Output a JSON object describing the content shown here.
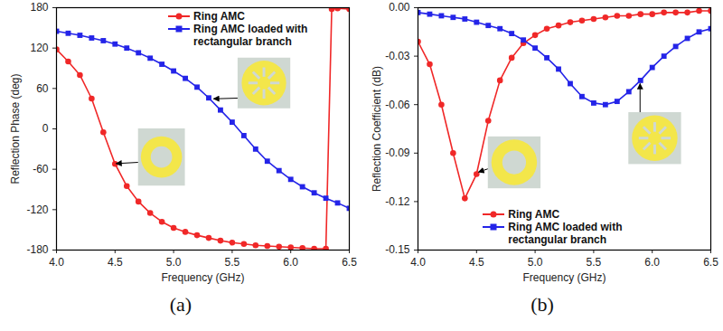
{
  "chart_data": [
    {
      "type": "line",
      "caption": "(a)",
      "x_label": "Frequency (GHz)",
      "y_label": "Reflection Phase (deg)",
      "xlim": [
        4.0,
        6.5
      ],
      "xticks": [
        {
          "value": 4.0,
          "label": "4.0"
        },
        {
          "value": 4.5,
          "label": "4.5"
        },
        {
          "value": 5.0,
          "label": "5.0"
        },
        {
          "value": 5.5,
          "label": "5.5"
        },
        {
          "value": 6.0,
          "label": "6.0"
        },
        {
          "value": 6.5,
          "label": "6.5"
        }
      ],
      "ylim": [
        -180,
        180
      ],
      "yticks": [
        -180,
        -120,
        -60,
        0,
        60,
        120,
        180
      ],
      "grid": false,
      "legend": "upper right",
      "series": [
        {
          "name": "Ring AMC",
          "color": "#f02828",
          "marker": "circle",
          "line_style": "solid",
          "x": [
            4.0,
            4.1,
            4.2,
            4.3,
            4.4,
            4.5,
            4.6,
            4.7,
            4.8,
            4.9,
            5.0,
            5.1,
            5.2,
            5.3,
            5.4,
            5.5,
            5.6,
            5.7,
            5.8,
            5.9,
            6.0,
            6.1,
            6.2,
            6.3,
            6.35,
            6.4,
            6.5
          ],
          "values": [
            118,
            100,
            80,
            45,
            -5,
            -52,
            -85,
            -108,
            -125,
            -138,
            -147,
            -153,
            -158,
            -162,
            -166,
            -169,
            -171,
            -173,
            -174,
            -175,
            -176,
            -177,
            -178,
            -178,
            178,
            179,
            178
          ]
        },
        {
          "name": "Ring AMC loaded with rectangular branch",
          "color": "#2424e8",
          "marker": "square",
          "line_style": "solid",
          "x": [
            4.0,
            4.1,
            4.2,
            4.3,
            4.4,
            4.5,
            4.6,
            4.7,
            4.8,
            4.9,
            5.0,
            5.1,
            5.2,
            5.3,
            5.4,
            5.5,
            5.6,
            5.7,
            5.8,
            5.9,
            6.0,
            6.1,
            6.2,
            6.3,
            6.4,
            6.5
          ],
          "values": [
            145,
            142,
            139,
            135,
            131,
            126,
            120,
            113,
            105,
            96,
            86,
            75,
            62,
            46,
            28,
            10,
            -10,
            -30,
            -48,
            -62,
            -75,
            -86,
            -95,
            -103,
            -110,
            -118
          ]
        }
      ]
    },
    {
      "type": "line",
      "caption": "(b)",
      "x_label": "Frequency (GHz)",
      "y_label": "Reflection Coefficient (dB)",
      "xlim": [
        4.0,
        6.5
      ],
      "xticks": [
        {
          "value": 4.0,
          "label": "4.0"
        },
        {
          "value": 4.5,
          "label": "4.5"
        },
        {
          "value": 5.0,
          "label": "5.0"
        },
        {
          "value": 5.5,
          "label": "5.5"
        },
        {
          "value": 6.0,
          "label": "6.0"
        },
        {
          "value": 6.5,
          "label": "6.5"
        }
      ],
      "ylim": [
        -0.15,
        0.0
      ],
      "yticks": [
        -0.15,
        -0.12,
        -0.09,
        -0.06,
        -0.03,
        {
          "value": 0.0,
          "label": "0.00"
        }
      ],
      "grid": false,
      "legend": "lower center",
      "series": [
        {
          "name": "Ring AMC",
          "color": "#f02828",
          "marker": "circle",
          "line_style": "solid",
          "x": [
            4.0,
            4.1,
            4.2,
            4.3,
            4.4,
            4.5,
            4.6,
            4.7,
            4.8,
            4.9,
            5.0,
            5.1,
            5.2,
            5.3,
            5.4,
            5.5,
            5.6,
            5.7,
            5.8,
            5.9,
            6.0,
            6.1,
            6.2,
            6.3,
            6.4,
            6.5
          ],
          "values": [
            -0.021,
            -0.035,
            -0.06,
            -0.09,
            -0.118,
            -0.103,
            -0.07,
            -0.045,
            -0.031,
            -0.022,
            -0.017,
            -0.013,
            -0.011,
            -0.009,
            -0.008,
            -0.007,
            -0.006,
            -0.005,
            -0.005,
            -0.004,
            -0.004,
            -0.003,
            -0.003,
            -0.003,
            -0.002,
            -0.002
          ]
        },
        {
          "name": "Ring AMC loaded with rectangular branch",
          "color": "#2424e8",
          "marker": "square",
          "line_style": "solid",
          "x": [
            4.0,
            4.1,
            4.2,
            4.3,
            4.4,
            4.5,
            4.6,
            4.7,
            4.8,
            4.9,
            5.0,
            5.1,
            5.2,
            5.3,
            5.4,
            5.5,
            5.6,
            5.7,
            5.8,
            5.9,
            6.0,
            6.1,
            6.2,
            6.3,
            6.4,
            6.5
          ],
          "values": [
            -0.003,
            -0.004,
            -0.005,
            -0.006,
            -0.007,
            -0.009,
            -0.011,
            -0.013,
            -0.016,
            -0.02,
            -0.025,
            -0.031,
            -0.038,
            -0.047,
            -0.055,
            -0.059,
            -0.06,
            -0.058,
            -0.052,
            -0.045,
            -0.037,
            -0.03,
            -0.024,
            -0.019,
            -0.015,
            -0.013
          ]
        }
      ]
    }
  ]
}
